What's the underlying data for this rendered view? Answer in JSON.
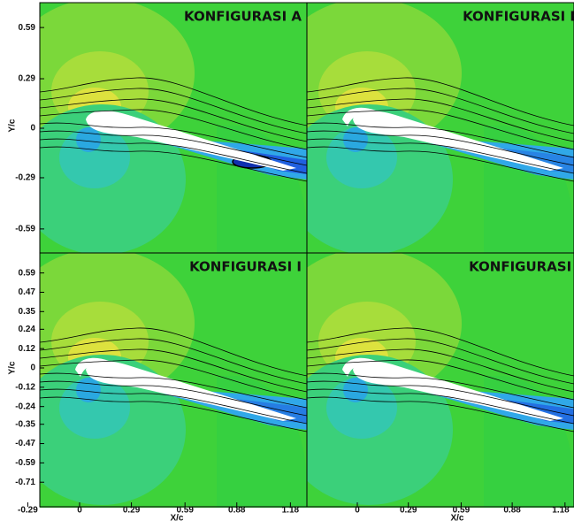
{
  "panels": [
    {
      "title": "KONFIGURASI A"
    },
    {
      "title": "KONFIGURASI H"
    },
    {
      "title": "KONFIGURASI I"
    },
    {
      "title": "KONFIGURASI J"
    }
  ],
  "axes": {
    "x_label": "X/c",
    "y_label": "Y/c",
    "top_left_yticks": [
      0.59,
      0.29,
      0,
      -0.29,
      -0.59
    ],
    "bottom_left_yticks": [
      0.59,
      0.47,
      0.35,
      0.24,
      0.12,
      0,
      -0.12,
      -0.24,
      -0.35,
      -0.47,
      -0.59,
      -0.71
    ],
    "bottom_left_xticks": [
      -0.29,
      0,
      0.29,
      0.59,
      0.88,
      1.18
    ],
    "bottom_right_xticks": [
      0,
      0.29,
      0.59,
      0.88,
      1.18
    ]
  }
}
